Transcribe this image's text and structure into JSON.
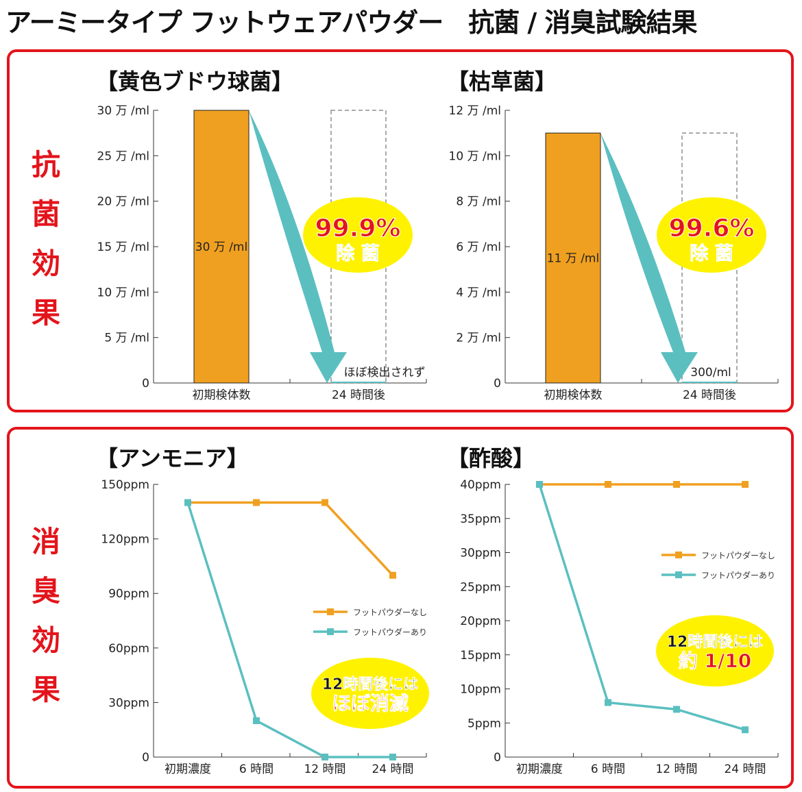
{
  "title": "アーミータイプ フットウェアパウダー　抗菌 / 消臭試験結果",
  "sections": {
    "antibacterial": "抗菌効果",
    "deodorant": "消臭効果"
  },
  "colors": {
    "frame": "#e3141b",
    "orange": "#f0a020",
    "teal": "#5bbfc0",
    "badge": "#fff200",
    "badge_text_red": "#e3141b"
  },
  "legend": [
    "フットパウダーなし",
    "フットパウダーあり"
  ],
  "chart_data": [
    {
      "type": "bar",
      "title": "【黄色ブドウ球菌】",
      "categories": [
        "初期検体数",
        "24 時間後"
      ],
      "values": [
        30,
        0
      ],
      "unit": "万 /ml",
      "ylim": [
        0,
        30
      ],
      "yticks": [
        "0",
        "5 万 /ml",
        "10 万 /ml",
        "15 万 /ml",
        "20 万 /ml",
        "25 万 /ml",
        "30 万 /ml"
      ],
      "data_labels": [
        "30 万 /ml",
        "ほぼ検出されず"
      ],
      "badge": {
        "percent": "99.9%",
        "text": "除 菌"
      }
    },
    {
      "type": "bar",
      "title": "【枯草菌】",
      "categories": [
        "初期検体数",
        "24 時間後"
      ],
      "values": [
        11,
        0.03
      ],
      "unit": "万 /ml",
      "ylim": [
        0,
        12
      ],
      "yticks": [
        "0",
        "2 万 /ml",
        "4 万 /ml",
        "6 万 /ml",
        "8 万 /ml",
        "10 万 /ml",
        "12 万 /ml"
      ],
      "data_labels": [
        "11 万 /ml",
        "300/ml"
      ],
      "badge": {
        "percent": "99.6%",
        "text": "除 菌"
      }
    },
    {
      "type": "line",
      "title": "【アンモニア】",
      "categories": [
        "初期濃度",
        "6 時間",
        "12 時間",
        "24 時間"
      ],
      "series": [
        {
          "name": "フットパウダーなし",
          "values": [
            140,
            140,
            140,
            100
          ]
        },
        {
          "name": "フットパウダーあり",
          "values": [
            140,
            20,
            0,
            0
          ]
        }
      ],
      "ylim": [
        0,
        150
      ],
      "yticks": [
        "0",
        "30ppm",
        "60ppm",
        "90ppm",
        "120ppm",
        "150ppm"
      ],
      "legend_position": "right",
      "callout": [
        "12時間後には",
        "ほぼ消滅"
      ]
    },
    {
      "type": "line",
      "title": "【酢酸】",
      "categories": [
        "初期濃度",
        "6 時間",
        "12 時間",
        "24 時間"
      ],
      "series": [
        {
          "name": "フットパウダーなし",
          "values": [
            40,
            40,
            40,
            40
          ]
        },
        {
          "name": "フットパウダーあり",
          "values": [
            40,
            8,
            7,
            4
          ]
        }
      ],
      "ylim": [
        0,
        40
      ],
      "yticks": [
        "0",
        "5ppm",
        "10ppm",
        "15ppm",
        "20ppm",
        "25ppm",
        "30ppm",
        "35ppm",
        "40ppm"
      ],
      "legend_position": "top-right",
      "callout": [
        "12時間後には",
        "約 1/10"
      ]
    }
  ]
}
